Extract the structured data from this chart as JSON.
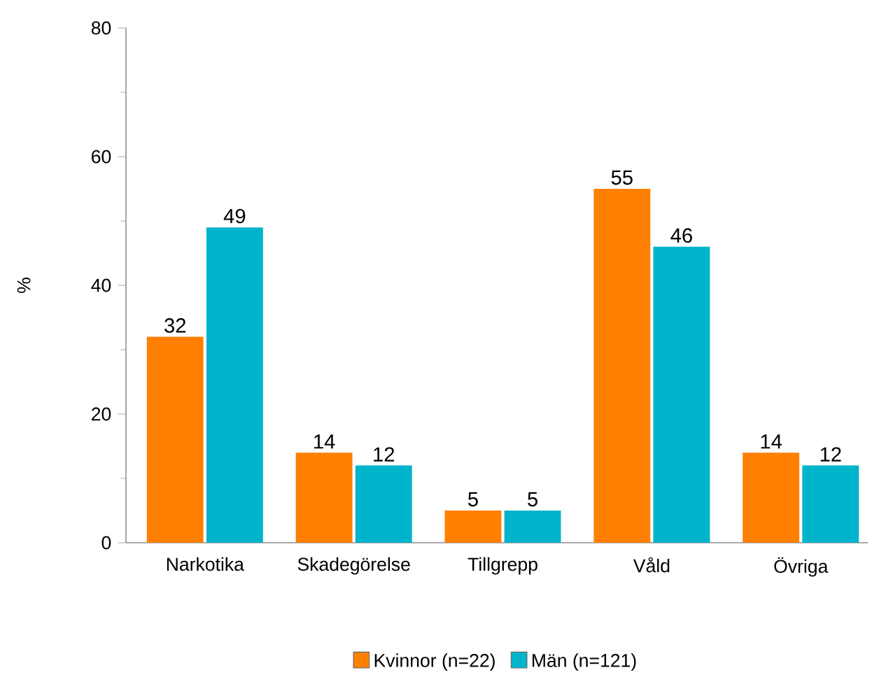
{
  "chart_data": {
    "type": "bar",
    "ylabel": "%",
    "categories": [
      "Narkotika",
      "Skadegörelse",
      "Tillgrepp",
      "Våld",
      "Övriga"
    ],
    "series": [
      {
        "name": "Kvinnor (n=22)",
        "color": "#ff8000",
        "values": [
          32,
          14,
          5,
          55,
          14
        ]
      },
      {
        "name": "Män (n=121)",
        "color": "#00b4cc",
        "values": [
          49,
          12,
          5,
          46,
          12
        ]
      }
    ],
    "ylim": [
      0,
      80
    ],
    "yticks": [
      0,
      20,
      40,
      60,
      80
    ],
    "data_labels": true,
    "legend": "bottom",
    "grid": false
  }
}
